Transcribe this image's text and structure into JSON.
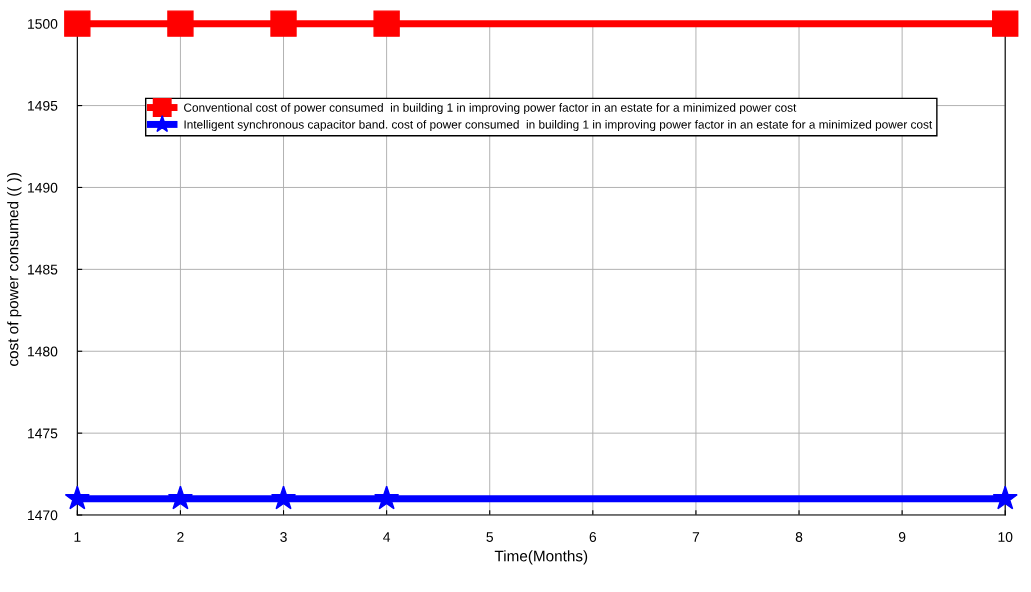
{
  "chart_data": {
    "type": "line",
    "xlabel": "Time(Months)",
    "ylabel": "cost of power consumed (( ))",
    "series": [
      {
        "name": "Conventional cost of power consumed  in building 1 in improving power factor in an estate for a minimized power cost",
        "color": "#ff0000",
        "marker": "square",
        "x": [
          1,
          2,
          3,
          4,
          10
        ],
        "values": [
          1500,
          1500,
          1500,
          1500,
          1500
        ]
      },
      {
        "name": "Intelligent synchronous capacitor band. cost of power consumed  in building 1 in improving power factor in an estate for a minimized power cost",
        "color": "#0000ff",
        "marker": "star",
        "x": [
          1,
          2,
          3,
          4,
          10
        ],
        "values": [
          1471,
          1471,
          1471,
          1471,
          1471
        ]
      }
    ],
    "xlim": [
      1,
      10
    ],
    "xticks": [
      1,
      2,
      3,
      4,
      5,
      6,
      7,
      8,
      9,
      10
    ],
    "ylim": [
      1470,
      1500
    ],
    "yticks": [
      1470,
      1475,
      1480,
      1485,
      1490,
      1495,
      1500
    ],
    "grid": true,
    "legend": "top",
    "line_style": "solid"
  }
}
